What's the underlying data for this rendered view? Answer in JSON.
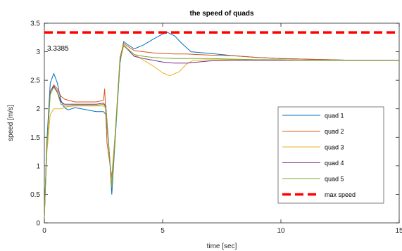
{
  "chart_data": {
    "type": "line",
    "title": "the speed of quads",
    "xlabel": "time [sec]",
    "ylabel": "speed [m/s]",
    "xlim": [
      0,
      15
    ],
    "ylim": [
      0,
      3.5
    ],
    "xticks": [
      0,
      5,
      10,
      15
    ],
    "yticks": [
      0,
      0.5,
      1,
      1.5,
      2,
      2.5,
      3,
      3.5
    ],
    "grid": false,
    "legend_position": "lower-right",
    "annotation": "3.3385",
    "series": [
      {
        "name": "quad 1",
        "color": "#0072BD",
        "x": [
          0,
          0.1,
          0.25,
          0.4,
          0.55,
          0.7,
          0.85,
          1.0,
          1.3,
          1.8,
          2.2,
          2.5,
          2.6,
          2.75,
          2.85,
          3.0,
          3.2,
          3.35,
          3.5,
          3.8,
          4.2,
          4.6,
          5.0,
          5.2,
          5.5,
          5.8,
          6.2,
          7,
          8,
          9,
          10,
          11,
          12,
          13,
          14,
          15
        ],
        "y": [
          0.1,
          1.4,
          2.45,
          2.62,
          2.45,
          2.15,
          2.02,
          1.98,
          2.02,
          1.98,
          1.95,
          1.95,
          1.9,
          1.2,
          0.5,
          1.5,
          2.8,
          3.18,
          3.13,
          3.05,
          3.12,
          3.22,
          3.31,
          3.34,
          3.28,
          3.15,
          3.0,
          2.97,
          2.93,
          2.9,
          2.88,
          2.87,
          2.86,
          2.85,
          2.85,
          2.85
        ]
      },
      {
        "name": "quad 2",
        "color": "#D95319",
        "x": [
          0,
          0.1,
          0.25,
          0.4,
          0.55,
          0.7,
          0.85,
          1.0,
          1.3,
          1.8,
          2.2,
          2.5,
          2.55,
          2.65,
          2.85,
          3.0,
          3.2,
          3.35,
          3.5,
          3.8,
          4.2,
          4.6,
          5.0,
          5.5,
          6.0,
          6.5,
          7,
          8,
          9,
          10,
          11,
          12,
          13,
          14,
          15
        ],
        "y": [
          0.1,
          1.3,
          2.3,
          2.42,
          2.35,
          2.22,
          2.17,
          2.15,
          2.12,
          2.12,
          2.12,
          2.15,
          2.35,
          1.4,
          0.8,
          1.6,
          2.9,
          3.15,
          3.1,
          3.02,
          3.0,
          2.98,
          2.97,
          2.96,
          2.96,
          2.95,
          2.94,
          2.93,
          2.9,
          2.88,
          2.87,
          2.86,
          2.85,
          2.85,
          2.85
        ]
      },
      {
        "name": "quad 3",
        "color": "#EDB120",
        "x": [
          0,
          0.1,
          0.25,
          0.4,
          0.55,
          0.7,
          0.85,
          1.0,
          1.3,
          1.8,
          2.2,
          2.5,
          2.6,
          2.75,
          2.85,
          3.0,
          3.2,
          3.35,
          3.5,
          3.8,
          4.2,
          4.6,
          5.0,
          5.3,
          5.7,
          6.0,
          6.3,
          7,
          8,
          9,
          10,
          11,
          12,
          13,
          14,
          15
        ],
        "y": [
          0.1,
          1.2,
          1.9,
          2.0,
          2.0,
          2.0,
          2.02,
          2.04,
          2.05,
          2.05,
          2.05,
          2.05,
          2.0,
          1.2,
          0.7,
          1.6,
          2.85,
          3.1,
          3.05,
          2.95,
          2.85,
          2.75,
          2.63,
          2.58,
          2.65,
          2.78,
          2.85,
          2.86,
          2.86,
          2.85,
          2.85,
          2.85,
          2.85,
          2.85,
          2.85,
          2.85
        ]
      },
      {
        "name": "quad 4",
        "color": "#7E2F8E",
        "x": [
          0,
          0.1,
          0.25,
          0.4,
          0.55,
          0.7,
          0.85,
          1.0,
          1.3,
          1.8,
          2.2,
          2.5,
          2.6,
          2.75,
          2.85,
          3.0,
          3.2,
          3.35,
          3.5,
          3.8,
          4.2,
          4.6,
          5.0,
          5.5,
          6.0,
          6.5,
          7,
          8,
          9,
          10,
          11,
          12,
          13,
          14,
          15
        ],
        "y": [
          0.1,
          1.3,
          2.3,
          2.4,
          2.3,
          2.12,
          2.08,
          2.08,
          2.08,
          2.08,
          2.08,
          2.1,
          2.05,
          1.2,
          0.6,
          1.55,
          2.85,
          3.12,
          3.05,
          2.92,
          2.88,
          2.85,
          2.82,
          2.8,
          2.8,
          2.82,
          2.84,
          2.85,
          2.85,
          2.85,
          2.85,
          2.85,
          2.85,
          2.85,
          2.85
        ]
      },
      {
        "name": "quad 5",
        "color": "#77AC30",
        "x": [
          0,
          0.1,
          0.25,
          0.4,
          0.55,
          0.7,
          0.85,
          1.0,
          1.3,
          1.8,
          2.2,
          2.5,
          2.6,
          2.75,
          2.85,
          3.0,
          3.2,
          3.35,
          3.5,
          3.8,
          4.2,
          4.6,
          5.0,
          5.5,
          6.0,
          6.5,
          7,
          8,
          9,
          10,
          11,
          12,
          13,
          14,
          15
        ],
        "y": [
          0.1,
          1.3,
          2.25,
          2.38,
          2.28,
          2.08,
          2.05,
          2.05,
          2.06,
          2.06,
          2.06,
          2.08,
          2.02,
          1.2,
          0.62,
          1.55,
          2.85,
          3.12,
          3.06,
          2.95,
          2.92,
          2.9,
          2.89,
          2.88,
          2.88,
          2.88,
          2.88,
          2.87,
          2.86,
          2.86,
          2.85,
          2.85,
          2.85,
          2.85,
          2.85
        ]
      },
      {
        "name": "max speed",
        "color": "#FF0000",
        "dashed": true,
        "x": [
          0,
          15
        ],
        "y": [
          3.3385,
          3.3385
        ]
      }
    ]
  }
}
